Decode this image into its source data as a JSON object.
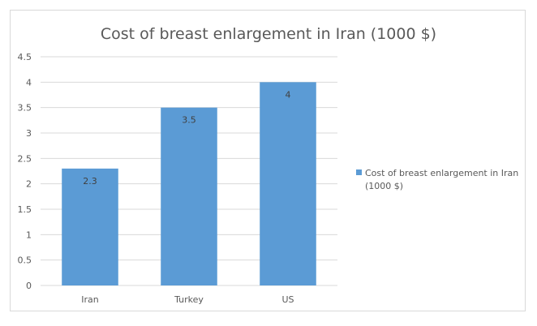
{
  "chart_data": {
    "type": "bar",
    "title": "Cost of breast enlargement in Iran (1000 $)",
    "categories": [
      "Iran",
      "Turkey",
      "US"
    ],
    "series": [
      {
        "name": "Cost of breast enlargement in Iran (1000 $)",
        "values": [
          2.3,
          3.5,
          4
        ],
        "labels": [
          "2.3",
          "3.5",
          "4"
        ]
      }
    ],
    "ylim": [
      0,
      4.5
    ],
    "yticks": [
      "0",
      "0.5",
      "1",
      "1.5",
      "2",
      "2.5",
      "3",
      "3.5",
      "4",
      "4.5"
    ],
    "grid": true,
    "legend": "right",
    "colors": {
      "bar": "#5b9bd5",
      "grid": "#d9d9d9",
      "text": "#595959"
    }
  },
  "legend_lines": [
    "Cost of breast enlargement in Iran",
    "(1000 $)"
  ]
}
